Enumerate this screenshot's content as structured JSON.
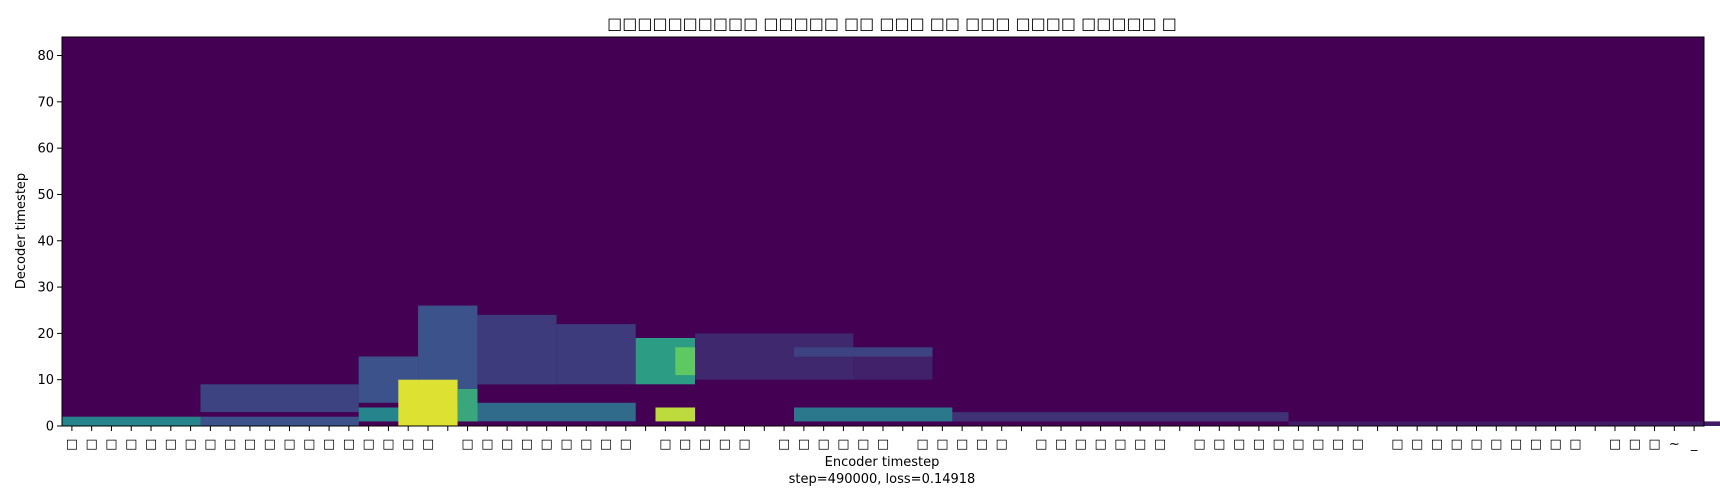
{
  "chart_data": {
    "type": "heatmap",
    "title": "□□□□□□□□□□ □□□□□ □□ □□□ □□ □□□ □□□□ □□□□□ □",
    "xlabel": "Encoder timestep",
    "ylabel": "Decoder timestep",
    "caption": "step=490000, loss=0.14918",
    "ylim": [
      0,
      84
    ],
    "yticks": [
      0,
      10,
      20,
      30,
      40,
      50,
      60,
      70,
      80
    ],
    "colormap": "viridis",
    "x_tick_labels": [
      "□",
      "□",
      "□",
      "□",
      "□",
      "□",
      "□",
      "□",
      "□",
      "□",
      "□",
      "□",
      "□",
      "□",
      "□",
      "□",
      "□",
      "□",
      "□",
      " ",
      "□",
      "□",
      "□",
      "□",
      "□",
      "□",
      "□",
      "□",
      "□",
      " ",
      "□",
      "□",
      "□",
      "□",
      "□",
      " ",
      "□",
      "□",
      "□",
      "□",
      "□",
      "□",
      " ",
      "□",
      "□",
      "□",
      "□",
      "□",
      " ",
      "□",
      "□",
      "□",
      "□",
      "□",
      "□",
      "□",
      " ",
      "□",
      "□",
      "□",
      "□",
      "□",
      "□",
      "□",
      "□",
      "□",
      " ",
      "□",
      "□",
      "□",
      "□",
      "□",
      "□",
      "□",
      "□",
      "□",
      "□",
      " ",
      "□",
      "□",
      "□",
      "~",
      "_"
    ],
    "highlights": [
      {
        "x": [
          17,
          20
        ],
        "y": [
          0,
          10
        ],
        "level": 0.95
      },
      {
        "x": [
          20,
          21
        ],
        "y": [
          1,
          8
        ],
        "level": 0.6
      },
      {
        "x": [
          30,
          32
        ],
        "y": [
          1,
          4
        ],
        "level": 0.9
      },
      {
        "x": [
          29,
          32
        ],
        "y": [
          9,
          19
        ],
        "level": 0.55
      },
      {
        "x": [
          31,
          32
        ],
        "y": [
          11,
          17
        ],
        "level": 0.75
      },
      {
        "x": [
          0,
          7
        ],
        "y": [
          0,
          2
        ],
        "level": 0.45
      },
      {
        "x": [
          7,
          15
        ],
        "y": [
          0,
          2
        ],
        "level": 0.25
      },
      {
        "x": [
          15,
          20
        ],
        "y": [
          1,
          4
        ],
        "level": 0.45
      },
      {
        "x": [
          20,
          29
        ],
        "y": [
          1,
          5
        ],
        "level": 0.35
      },
      {
        "x": [
          37,
          45
        ],
        "y": [
          1,
          4
        ],
        "level": 0.4
      },
      {
        "x": [
          45,
          62
        ],
        "y": [
          1,
          3
        ],
        "level": 0.15
      },
      {
        "x": [
          62,
          87
        ],
        "y": [
          0,
          1
        ],
        "level": 0.08
      },
      {
        "x": [
          7,
          15
        ],
        "y": [
          3,
          9
        ],
        "level": 0.2
      },
      {
        "x": [
          15,
          18
        ],
        "y": [
          5,
          15
        ],
        "level": 0.25
      },
      {
        "x": [
          18,
          21
        ],
        "y": [
          8,
          26
        ],
        "level": 0.25
      },
      {
        "x": [
          21,
          25
        ],
        "y": [
          9,
          24
        ],
        "level": 0.18
      },
      {
        "x": [
          25,
          29
        ],
        "y": [
          9,
          22
        ],
        "level": 0.18
      },
      {
        "x": [
          32,
          40
        ],
        "y": [
          10,
          20
        ],
        "level": 0.12
      },
      {
        "x": [
          40,
          44
        ],
        "y": [
          10,
          16
        ],
        "level": 0.1
      },
      {
        "x": [
          37,
          44
        ],
        "y": [
          15,
          17
        ],
        "level": 0.2
      }
    ]
  }
}
